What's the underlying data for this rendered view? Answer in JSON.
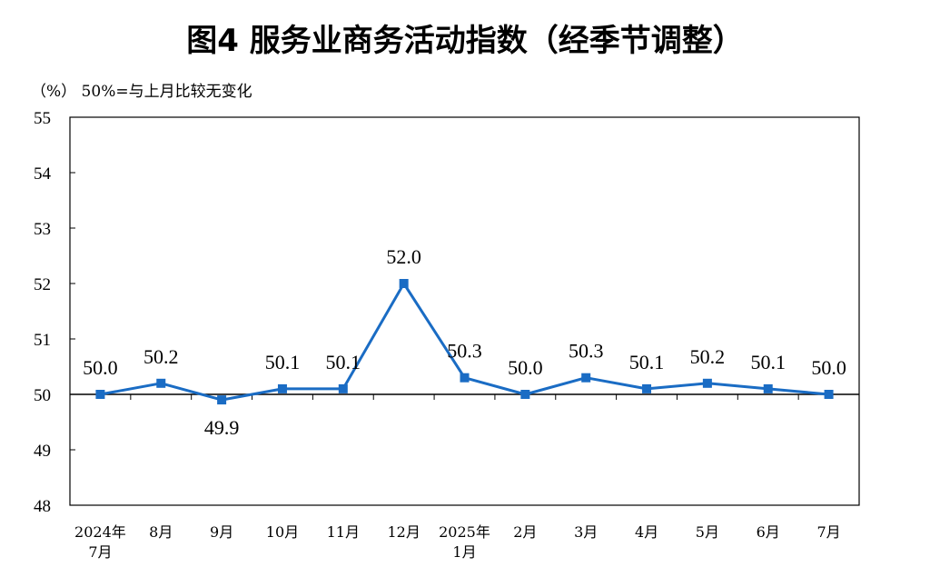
{
  "chart_data": {
    "type": "line",
    "title": "图4  服务业商务活动指数（经季节调整）",
    "unit_note": "（%）  50%=与上月比较无变化",
    "categories": [
      [
        "2024年",
        "7月"
      ],
      [
        "8月"
      ],
      [
        "9月"
      ],
      [
        "10月"
      ],
      [
        "11月"
      ],
      [
        "12月"
      ],
      [
        "2025年",
        "1月"
      ],
      [
        "2月"
      ],
      [
        "3月"
      ],
      [
        "4月"
      ],
      [
        "5月"
      ],
      [
        "6月"
      ],
      [
        "7月"
      ]
    ],
    "series": [
      {
        "values": [
          50.0,
          50.2,
          49.9,
          50.1,
          50.1,
          52.0,
          50.3,
          50.0,
          50.3,
          50.1,
          50.2,
          50.1,
          50.0
        ],
        "labels": [
          "50.0",
          "50.2",
          "49.9",
          "50.1",
          "50.1",
          "52.0",
          "50.3",
          "50.0",
          "50.3",
          "50.1",
          "50.2",
          "50.1",
          "50.0"
        ],
        "label_position": [
          "above",
          "above",
          "below",
          "above",
          "above",
          "above",
          "above",
          "above",
          "above",
          "above",
          "above",
          "above",
          "above"
        ],
        "color": "#1a6cc4",
        "marker": "square"
      }
    ],
    "ylim": [
      48,
      55
    ],
    "yticks": [
      48,
      49,
      50,
      51,
      52,
      53,
      54,
      55
    ],
    "reference_line": 50,
    "grid": false,
    "legend": "none"
  }
}
